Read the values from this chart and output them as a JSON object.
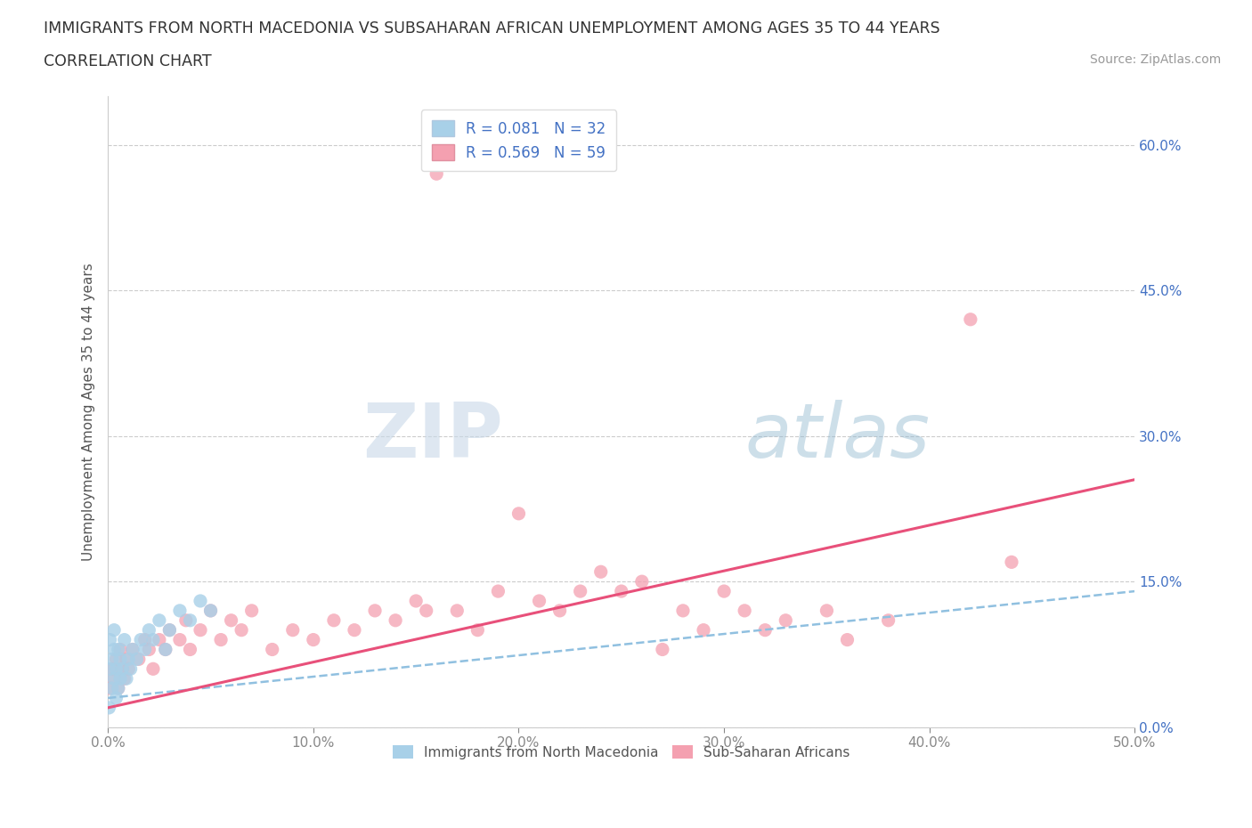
{
  "title_line1": "IMMIGRANTS FROM NORTH MACEDONIA VS SUBSAHARAN AFRICAN UNEMPLOYMENT AMONG AGES 35 TO 44 YEARS",
  "title_line2": "CORRELATION CHART",
  "source_text": "Source: ZipAtlas.com",
  "xlabel": "Immigrants from North Macedonia",
  "ylabel": "Unemployment Among Ages 35 to 44 years",
  "xlim": [
    0.0,
    0.5
  ],
  "ylim": [
    0.0,
    0.65
  ],
  "xticks": [
    0.0,
    0.1,
    0.2,
    0.3,
    0.4,
    0.5
  ],
  "xtick_labels": [
    "0.0%",
    "10.0%",
    "20.0%",
    "30.0%",
    "40.0%",
    "50.0%"
  ],
  "ytick_positions": [
    0.0,
    0.15,
    0.3,
    0.45,
    0.6
  ],
  "ytick_labels": [
    "0.0%",
    "15.0%",
    "30.0%",
    "45.0%",
    "60.0%"
  ],
  "blue_R": 0.081,
  "blue_N": 32,
  "pink_R": 0.569,
  "pink_N": 59,
  "blue_color": "#a8d0e8",
  "pink_color": "#f4a0b0",
  "blue_line_color": "#90c0e0",
  "pink_line_color": "#e8507a",
  "watermark_zip": "ZIP",
  "watermark_atlas": "atlas",
  "blue_scatter_x": [
    0.0005,
    0.001,
    0.001,
    0.002,
    0.002,
    0.003,
    0.003,
    0.003,
    0.004,
    0.004,
    0.005,
    0.005,
    0.006,
    0.006,
    0.007,
    0.008,
    0.009,
    0.01,
    0.011,
    0.012,
    0.014,
    0.016,
    0.018,
    0.02,
    0.022,
    0.025,
    0.028,
    0.03,
    0.035,
    0.04,
    0.045,
    0.05
  ],
  "blue_scatter_y": [
    0.02,
    0.06,
    0.09,
    0.04,
    0.07,
    0.05,
    0.08,
    0.1,
    0.03,
    0.06,
    0.04,
    0.08,
    0.05,
    0.07,
    0.06,
    0.09,
    0.05,
    0.07,
    0.06,
    0.08,
    0.07,
    0.09,
    0.08,
    0.1,
    0.09,
    0.11,
    0.08,
    0.1,
    0.12,
    0.11,
    0.13,
    0.12
  ],
  "pink_scatter_x": [
    0.001,
    0.002,
    0.003,
    0.004,
    0.005,
    0.006,
    0.007,
    0.008,
    0.009,
    0.01,
    0.012,
    0.015,
    0.018,
    0.02,
    0.022,
    0.025,
    0.028,
    0.03,
    0.035,
    0.038,
    0.04,
    0.045,
    0.05,
    0.055,
    0.06,
    0.065,
    0.07,
    0.08,
    0.09,
    0.1,
    0.11,
    0.12,
    0.13,
    0.14,
    0.15,
    0.155,
    0.16,
    0.17,
    0.18,
    0.19,
    0.2,
    0.21,
    0.22,
    0.23,
    0.24,
    0.25,
    0.26,
    0.27,
    0.28,
    0.29,
    0.3,
    0.31,
    0.32,
    0.33,
    0.35,
    0.36,
    0.38,
    0.42,
    0.44
  ],
  "pink_scatter_y": [
    0.04,
    0.06,
    0.05,
    0.07,
    0.04,
    0.08,
    0.06,
    0.05,
    0.07,
    0.06,
    0.08,
    0.07,
    0.09,
    0.08,
    0.06,
    0.09,
    0.08,
    0.1,
    0.09,
    0.11,
    0.08,
    0.1,
    0.12,
    0.09,
    0.11,
    0.1,
    0.12,
    0.08,
    0.1,
    0.09,
    0.11,
    0.1,
    0.12,
    0.11,
    0.13,
    0.12,
    0.57,
    0.12,
    0.1,
    0.14,
    0.22,
    0.13,
    0.12,
    0.14,
    0.16,
    0.14,
    0.15,
    0.08,
    0.12,
    0.1,
    0.14,
    0.12,
    0.1,
    0.11,
    0.12,
    0.09,
    0.11,
    0.42,
    0.17
  ]
}
